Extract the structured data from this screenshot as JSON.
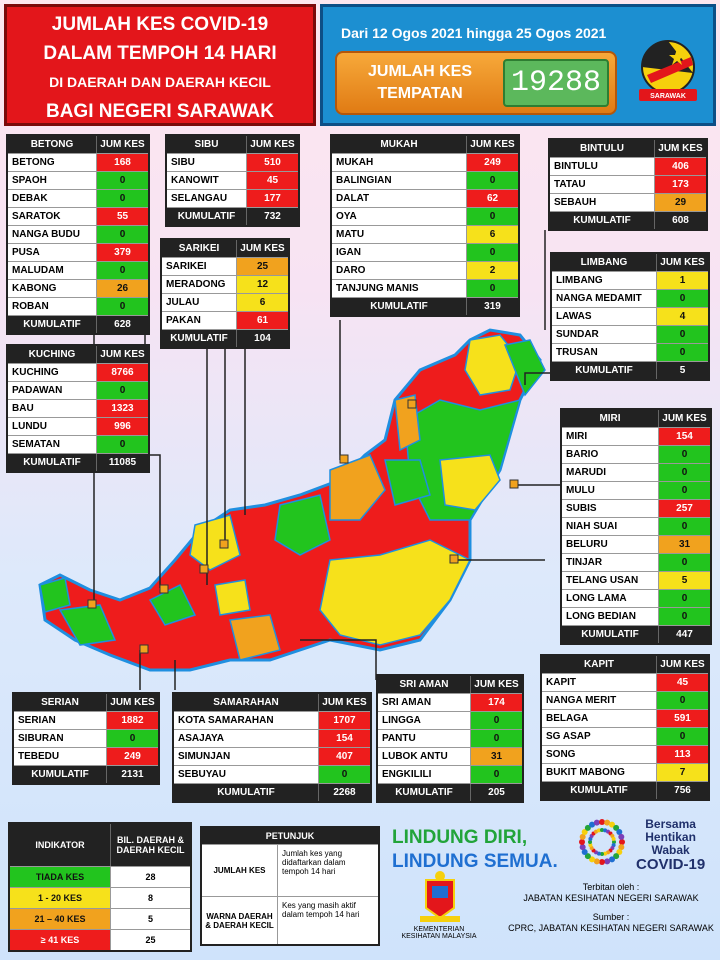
{
  "header": {
    "title_line1": "JUMLAH KES COVID-19",
    "title_line2": "DALAM TEMPOH 14 HARI",
    "title_line3": "DI DAERAH DAN DAERAH KECIL",
    "title_line4": "BAGI NEGERI SARAWAK",
    "period": "Dari 12 Ogos 2021 hingga 25 Ogos 2021",
    "total_label": "JUMLAH KES TEMPATAN",
    "total_value": "19288",
    "flag_text": "SARAWAK"
  },
  "col_header": "JUM KES",
  "kumulatif_label": "KUMULATIF",
  "divisions": {
    "betong": {
      "name": "BETONG",
      "total": "628",
      "rows": [
        [
          "BETONG",
          "168",
          "red"
        ],
        [
          "SPAOH",
          "0",
          "green"
        ],
        [
          "DEBAK",
          "0",
          "green"
        ],
        [
          "SARATOK",
          "55",
          "red"
        ],
        [
          "NANGA BUDU",
          "0",
          "green"
        ],
        [
          "PUSA",
          "379",
          "red"
        ],
        [
          "MALUDAM",
          "0",
          "green"
        ],
        [
          "KABONG",
          "26",
          "orange"
        ],
        [
          "ROBAN",
          "0",
          "green"
        ]
      ]
    },
    "sibu": {
      "name": "SIBU",
      "total": "732",
      "rows": [
        [
          "SIBU",
          "510",
          "red"
        ],
        [
          "KANOWIT",
          "45",
          "red"
        ],
        [
          "SELANGAU",
          "177",
          "red"
        ]
      ]
    },
    "mukah": {
      "name": "MUKAH",
      "total": "319",
      "rows": [
        [
          "MUKAH",
          "249",
          "red"
        ],
        [
          "BALINGIAN",
          "0",
          "green"
        ],
        [
          "DALAT",
          "62",
          "red"
        ],
        [
          "OYA",
          "0",
          "green"
        ],
        [
          "MATU",
          "6",
          "yellow"
        ],
        [
          "IGAN",
          "0",
          "green"
        ],
        [
          "DARO",
          "2",
          "yellow"
        ],
        [
          "TANJUNG MANIS",
          "0",
          "green"
        ]
      ]
    },
    "bintulu": {
      "name": "BINTULU",
      "total": "608",
      "rows": [
        [
          "BINTULU",
          "406",
          "red"
        ],
        [
          "TATAU",
          "173",
          "red"
        ],
        [
          "SEBAUH",
          "29",
          "orange"
        ]
      ]
    },
    "sarikei": {
      "name": "SARIKEI",
      "total": "104",
      "rows": [
        [
          "SARIKEI",
          "25",
          "orange"
        ],
        [
          "MERADONG",
          "12",
          "yellow"
        ],
        [
          "JULAU",
          "6",
          "yellow"
        ],
        [
          "PAKAN",
          "61",
          "red"
        ]
      ]
    },
    "limbang": {
      "name": "LIMBANG",
      "total": "5",
      "rows": [
        [
          "LIMBANG",
          "1",
          "yellow"
        ],
        [
          "NANGA MEDAMIT",
          "0",
          "green"
        ],
        [
          "LAWAS",
          "4",
          "yellow"
        ],
        [
          "SUNDAR",
          "0",
          "green"
        ],
        [
          "TRUSAN",
          "0",
          "green"
        ]
      ]
    },
    "kuching": {
      "name": "KUCHING",
      "total": "11085",
      "rows": [
        [
          "KUCHING",
          "8766",
          "red"
        ],
        [
          "PADAWAN",
          "0",
          "green"
        ],
        [
          "BAU",
          "1323",
          "red"
        ],
        [
          "LUNDU",
          "996",
          "red"
        ],
        [
          "SEMATAN",
          "0",
          "green"
        ]
      ]
    },
    "miri": {
      "name": "MIRI",
      "total": "447",
      "rows": [
        [
          "MIRI",
          "154",
          "red"
        ],
        [
          "BARIO",
          "0",
          "green"
        ],
        [
          "MARUDI",
          "0",
          "green"
        ],
        [
          "MULU",
          "0",
          "green"
        ],
        [
          "SUBIS",
          "257",
          "red"
        ],
        [
          "NIAH SUAI",
          "0",
          "green"
        ],
        [
          "BELURU",
          "31",
          "orange"
        ],
        [
          "TINJAR",
          "0",
          "green"
        ],
        [
          "TELANG USAN",
          "5",
          "yellow"
        ],
        [
          "LONG LAMA",
          "0",
          "green"
        ],
        [
          "LONG BEDIAN",
          "0",
          "green"
        ]
      ]
    },
    "kapit": {
      "name": "KAPIT",
      "total": "756",
      "rows": [
        [
          "KAPIT",
          "45",
          "red"
        ],
        [
          "NANGA MERIT",
          "0",
          "green"
        ],
        [
          "BELAGA",
          "591",
          "red"
        ],
        [
          "SG ASAP",
          "0",
          "green"
        ],
        [
          "SONG",
          "113",
          "red"
        ],
        [
          "BUKIT MABONG",
          "7",
          "yellow"
        ]
      ]
    },
    "serian": {
      "name": "SERIAN",
      "total": "2131",
      "rows": [
        [
          "SERIAN",
          "1882",
          "red"
        ],
        [
          "SIBURAN",
          "0",
          "green"
        ],
        [
          "TEBEDU",
          "249",
          "red"
        ]
      ]
    },
    "samarahan": {
      "name": "SAMARAHAN",
      "total": "2268",
      "rows": [
        [
          "KOTA SAMARAHAN",
          "1707",
          "red"
        ],
        [
          "ASAJAYA",
          "154",
          "red"
        ],
        [
          "SIMUNJAN",
          "407",
          "red"
        ],
        [
          "SEBUYAU",
          "0",
          "green"
        ]
      ]
    },
    "sriaman": {
      "name": "SRI AMAN",
      "total": "205",
      "rows": [
        [
          "SRI AMAN",
          "174",
          "red"
        ],
        [
          "LINGGA",
          "0",
          "green"
        ],
        [
          "PANTU",
          "0",
          "green"
        ],
        [
          "LUBOK ANTU",
          "31",
          "orange"
        ],
        [
          "ENGKILILI",
          "0",
          "green"
        ]
      ]
    }
  },
  "legend": {
    "h1": "INDIKATOR",
    "h2": "BIL. DAERAH & DAERAH KECIL",
    "rows": [
      [
        "TIADA KES",
        "28",
        "green"
      ],
      [
        "1 - 20 KES",
        "8",
        "yellow"
      ],
      [
        "21 – 40 KES",
        "5",
        "orange"
      ],
      [
        "≥ 41 KES",
        "25",
        "red"
      ]
    ]
  },
  "petunjuk": {
    "title": "PETUNJUK",
    "k1": "JUMLAH KES",
    "v1": "Jumlah kes yang didaftarkan dalam tempoh 14 hari",
    "k2": "WARNA DAERAH & DAERAH KECIL",
    "v2": "Kes yang masih aktif dalam tempoh 14 hari"
  },
  "slogan": {
    "line1": "LINDUNG DIRI,",
    "line2": "LINDUNG SEMUA."
  },
  "bersama": {
    "l1": "Bersama",
    "l2": "Hentikan",
    "l3": "Wabak",
    "l4": "COVID-19"
  },
  "kkm": "KEMENTERIAN KESIHATAN MALAYSIA",
  "terbitan": {
    "label": "Terbitan oleh :",
    "value": "JABATAN KESIHATAN NEGERI SARAWAK",
    "sumber_label": "Sumber :",
    "sumber": "CPRC, JABATAN KESIHATAN NEGERI SARAWAK"
  },
  "colors": {
    "red": "#ee1c1c",
    "green": "#22c41e",
    "yellow": "#f6e11b",
    "orange": "#f1a21e"
  }
}
